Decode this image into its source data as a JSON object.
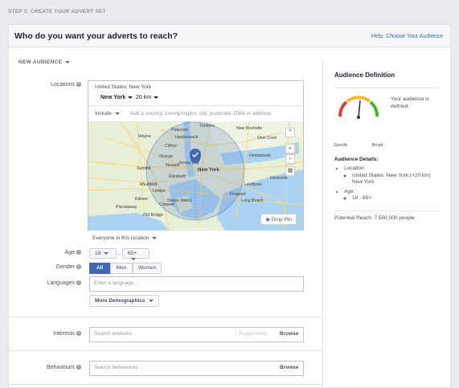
{
  "step_label": "STEP 3: CREATE YOUR ADVERT SET",
  "header": {
    "title": "Who do you want your adverts to reach?",
    "help_link": "Help: Choose Your Audience"
  },
  "audience_dropdown": "NEW AUDIENCE",
  "locations": {
    "label": "Locations",
    "title": "United States: New York",
    "city": "New York",
    "radius": "20 km",
    "include_mode": "Include",
    "add_placeholder": "Add a country, county/region, city, postcode, DMA or address",
    "drop_pin": "Drop Pin",
    "everyone_filter": "Everyone in this location",
    "map_zoom_in": "+",
    "map_zoom_out": "−",
    "map_labels": [
      "Yonkers",
      "Paterson",
      "New Rochelle",
      "Wayne",
      "Hackensack",
      "Glen Cove",
      "Clifton",
      "Hempstead",
      "Orange",
      "Newark",
      "Summit",
      "Elizabeth",
      "New York",
      "Westfield",
      "Linden",
      "Hicksville",
      "Jersey City",
      "Levittown",
      "Edison",
      "Staten Island",
      "Long Beach",
      "Old Bridge",
      "Piscataway",
      "Carteret",
      "Freeport"
    ]
  },
  "age": {
    "label": "Age",
    "min": "18",
    "max": "65+",
    "separator": "-"
  },
  "gender": {
    "label": "Gender",
    "options": [
      "All",
      "Men",
      "Women"
    ],
    "selected": "All"
  },
  "languages": {
    "label": "Languages",
    "placeholder": "Enter a language..."
  },
  "more_demographics": "More Demographics",
  "interests": {
    "label": "Interests",
    "placeholder": "Search interests",
    "suggestions": "Suggestions",
    "browse": "Browse"
  },
  "behaviours": {
    "label": "Behaviours",
    "placeholder": "Search behaviours",
    "browse": "Browse"
  },
  "audience_definition": {
    "title": "Audience Definition",
    "status": "Your audience is defined.",
    "gauge_left": "Specific",
    "gauge_right": "Broad",
    "details_title": "Audience Details:",
    "location_label": "Location:",
    "location_value": "United States: New York (+20 km) New York",
    "age_label": "Age:",
    "age_value": "18 - 65+",
    "potential_reach": "Potential Reach: 7,500,000 people"
  },
  "colors": {
    "accent": "#4267b2",
    "gauge_red": "#e0393e",
    "gauge_yellow": "#f7b928",
    "gauge_green": "#42b72a"
  }
}
